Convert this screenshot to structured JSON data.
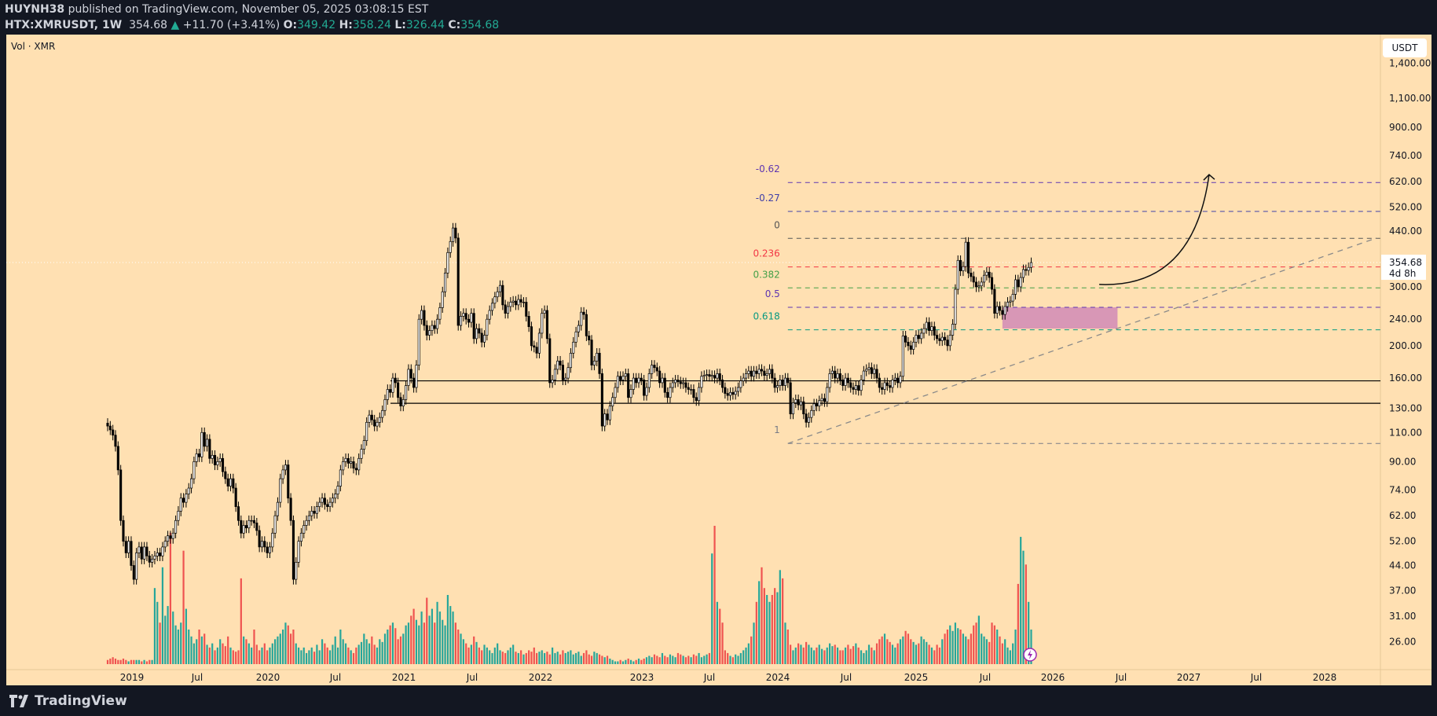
{
  "header": {
    "author": "HUYNH38",
    "published_text": "published on TradingView.com, November 05, 2025 03:08:15 EST",
    "symbol": "HTX:XMRUSDT, 1W",
    "last": "354.68",
    "change": "+11.70 (+3.41%)",
    "o_label": "O:",
    "o": "349.42",
    "h_label": "H:",
    "h": "358.24",
    "l_label": "L:",
    "l": "326.44",
    "c_label": "C:",
    "c": "354.68",
    "direction_icon": "triangle-up-icon"
  },
  "indicator_label": "Vol · XMR",
  "currency_button": "USDT",
  "footer": {
    "logo_text": "TradingView"
  },
  "colors": {
    "background": "#ffe0b2",
    "up_volume": "#26a69a",
    "down_volume": "#ef5350",
    "zone": "#d48fb6"
  },
  "chart_data": {
    "type": "candlestick",
    "timeframe": "1W",
    "y_scale": "log",
    "grid": false,
    "closes": [
      115,
      112,
      108,
      100,
      85,
      60,
      52,
      48,
      52,
      44,
      40,
      48,
      50,
      46,
      50,
      47,
      45,
      46,
      47,
      48,
      47,
      50,
      52,
      54,
      53,
      55,
      60,
      64,
      70,
      68,
      72,
      75,
      80,
      90,
      95,
      93,
      110,
      100,
      105,
      92,
      94,
      88,
      90,
      92,
      84,
      80,
      76,
      80,
      75,
      66,
      60,
      55,
      58,
      57,
      60,
      60,
      59,
      56,
      50,
      52,
      50,
      48,
      50,
      55,
      62,
      68,
      80,
      85,
      88,
      70,
      60,
      40,
      45,
      52,
      55,
      58,
      60,
      62,
      64,
      63,
      66,
      68,
      70,
      67,
      66,
      68,
      70,
      72,
      76,
      85,
      90,
      92,
      89,
      90,
      86,
      85,
      92,
      98,
      104,
      118,
      124,
      120,
      115,
      118,
      122,
      128,
      138,
      148,
      145,
      160,
      155,
      140,
      132,
      138,
      152,
      170,
      160,
      150,
      175,
      240,
      255,
      230,
      215,
      222,
      230,
      225,
      240,
      260,
      290,
      330,
      380,
      410,
      450,
      420,
      230,
      245,
      250,
      240,
      235,
      250,
      210,
      225,
      218,
      205,
      215,
      240,
      255,
      268,
      280,
      290,
      303,
      265,
      250,
      262,
      270,
      272,
      265,
      275,
      270,
      270,
      245,
      228,
      200,
      198,
      190,
      218,
      250,
      255,
      210,
      155,
      158,
      170,
      180,
      175,
      158,
      160,
      172,
      190,
      205,
      220,
      230,
      252,
      248,
      214,
      208,
      175,
      180,
      190,
      165,
      115,
      125,
      120,
      132,
      140,
      150,
      162,
      158,
      162,
      165,
      140,
      148,
      160,
      155,
      160,
      158,
      142,
      150,
      165,
      175,
      172,
      168,
      155,
      160,
      145,
      140,
      150,
      155,
      158,
      156,
      154,
      155,
      150,
      148,
      148,
      140,
      137,
      150,
      162,
      163,
      164,
      162,
      163,
      160,
      165,
      158,
      150,
      144,
      142,
      145,
      143,
      146,
      150,
      157,
      160,
      165,
      168,
      162,
      168,
      165,
      170,
      168,
      163,
      165,
      170,
      160,
      150,
      152,
      158,
      152,
      160,
      155,
      125,
      135,
      138,
      133,
      136,
      125,
      118,
      122,
      128,
      134,
      132,
      137,
      139,
      136,
      150,
      165,
      168,
      160,
      165,
      158,
      152,
      160,
      155,
      150,
      148,
      152,
      147,
      158,
      168,
      170,
      172,
      165,
      170,
      160,
      150,
      148,
      155,
      152,
      150,
      158,
      160,
      155,
      162,
      214,
      205,
      200,
      195,
      205,
      215,
      210,
      218,
      225,
      235,
      222,
      228,
      215,
      210,
      207,
      212,
      208,
      200,
      215,
      232,
      295,
      360,
      335,
      345,
      408,
      330,
      322,
      310,
      300,
      302,
      310,
      325,
      332,
      320,
      295,
      250,
      262,
      255,
      248,
      262,
      270,
      272,
      285,
      315,
      300,
      320,
      338,
      336,
      343,
      354.68
    ],
    "volume_relative": [
      3,
      4,
      5,
      4,
      3,
      3,
      4,
      3,
      2,
      3,
      3,
      3,
      3,
      2,
      3,
      2,
      3,
      3,
      55,
      45,
      30,
      70,
      35,
      42,
      95,
      38,
      28,
      25,
      30,
      82,
      40,
      25,
      20,
      15,
      18,
      25,
      20,
      22,
      14,
      12,
      15,
      10,
      12,
      18,
      15,
      13,
      20,
      12,
      10,
      9,
      10,
      62,
      20,
      18,
      15,
      12,
      25,
      14,
      10,
      12,
      15,
      10,
      12,
      15,
      18,
      20,
      22,
      25,
      30,
      28,
      22,
      25,
      15,
      12,
      10,
      12,
      8,
      10,
      12,
      9,
      14,
      10,
      18,
      15,
      12,
      10,
      14,
      20,
      12,
      25,
      18,
      15,
      12,
      10,
      8,
      12,
      14,
      16,
      22,
      18,
      15,
      20,
      14,
      12,
      18,
      16,
      22,
      25,
      28,
      30,
      26,
      18,
      20,
      22,
      28,
      30,
      35,
      40,
      32,
      28,
      38,
      30,
      48,
      35,
      40,
      30,
      45,
      38,
      32,
      28,
      50,
      42,
      38,
      30,
      25,
      22,
      18,
      15,
      12,
      14,
      20,
      16,
      12,
      10,
      14,
      12,
      10,
      8,
      12,
      15,
      10,
      9,
      8,
      10,
      12,
      14,
      9,
      8,
      10,
      7,
      8,
      10,
      9,
      12,
      8,
      9,
      10,
      8,
      9,
      7,
      12,
      8,
      9,
      7,
      10,
      8,
      9,
      10,
      7,
      8,
      9,
      6,
      8,
      10,
      7,
      6,
      9,
      8,
      7,
      6,
      5,
      6,
      4,
      3,
      2,
      2,
      3,
      2,
      3,
      4,
      3,
      2,
      3,
      4,
      3,
      4,
      5,
      6,
      5,
      7,
      6,
      5,
      8,
      6,
      5,
      7,
      6,
      5,
      8,
      7,
      6,
      5,
      6,
      5,
      7,
      6,
      8,
      5,
      6,
      7,
      8,
      80,
      100,
      45,
      40,
      30,
      10,
      8,
      6,
      5,
      7,
      6,
      8,
      10,
      12,
      15,
      20,
      30,
      45,
      60,
      70,
      55,
      50,
      45,
      50,
      55,
      52,
      68,
      62,
      30,
      25,
      14,
      10,
      12,
      15,
      14,
      12,
      16,
      14,
      12,
      10,
      12,
      14,
      11,
      10,
      12,
      15,
      13,
      14,
      12,
      10,
      10,
      12,
      14,
      11,
      13,
      15,
      12,
      10,
      8,
      10,
      14,
      12,
      10,
      15,
      18,
      20,
      22,
      18,
      16,
      14,
      12,
      15,
      18,
      20,
      24,
      22,
      18,
      16,
      14,
      15,
      20,
      18,
      16,
      14,
      12,
      10,
      14,
      12,
      18,
      22,
      25,
      28,
      24,
      30,
      26,
      25,
      22,
      20,
      18,
      22,
      28,
      30,
      35,
      22,
      20,
      18,
      16,
      30,
      28,
      25,
      20,
      15,
      18,
      12,
      10,
      15,
      25,
      58,
      92,
      82,
      72,
      45,
      25
    ],
    "price_ticks": [
      {
        "value": 1400,
        "label": "1,400.00"
      },
      {
        "value": 1100,
        "label": "1,100.00"
      },
      {
        "value": 900,
        "label": "900.00"
      },
      {
        "value": 740,
        "label": "740.00"
      },
      {
        "value": 620,
        "label": "620.00"
      },
      {
        "value": 520,
        "label": "520.00"
      },
      {
        "value": 440,
        "label": "440.00"
      },
      {
        "value": 300,
        "label": "300.00"
      },
      {
        "value": 240,
        "label": "240.00"
      },
      {
        "value": 200,
        "label": "200.00"
      },
      {
        "value": 160,
        "label": "160.00"
      },
      {
        "value": 130,
        "label": "130.00"
      },
      {
        "value": 110,
        "label": "110.00"
      },
      {
        "value": 90,
        "label": "90.00"
      },
      {
        "value": 74,
        "label": "74.00"
      },
      {
        "value": 62,
        "label": "62.00"
      },
      {
        "value": 52,
        "label": "52.00"
      },
      {
        "value": 44,
        "label": "44.00"
      },
      {
        "value": 37,
        "label": "37.00"
      },
      {
        "value": 31,
        "label": "31.00"
      },
      {
        "value": 26,
        "label": "26.00"
      }
    ],
    "time_ticks": [
      "2019",
      "Jul",
      "2020",
      "Jul",
      "2021",
      "Jul",
      "2022",
      "2023",
      "Jul",
      "2024",
      "Jul",
      "2025",
      "Jul",
      "2026",
      "Jul",
      "2027",
      "Jul",
      "2028"
    ],
    "last_price": {
      "value": 354.68,
      "label": "354.68",
      "countdown": "4d 8h"
    },
    "fibonacci": {
      "price_at_0": 419,
      "price_at_1": 102,
      "start_date": "2024-01-22",
      "levels": [
        {
          "level": -0.62,
          "label": "-0.62",
          "color": "#5e35b1"
        },
        {
          "level": -0.27,
          "label": "-0.27",
          "color": "#3f3fa8"
        },
        {
          "level": 0,
          "label": "0",
          "color": "#555555"
        },
        {
          "level": 0.236,
          "label": "0.236",
          "color": "#f23645"
        },
        {
          "level": 0.382,
          "label": "0.382",
          "color": "#43a047"
        },
        {
          "level": 0.5,
          "label": "0.5",
          "color": "#5e35b1"
        },
        {
          "level": 0.618,
          "label": "0.618",
          "color": "#089981"
        },
        {
          "level": 1,
          "label": "1",
          "color": "#787b86"
        }
      ]
    },
    "horizontal_lines": [
      157,
      134.5
    ],
    "trendline": {
      "from": {
        "date": "2024-01-22",
        "price": 102
      },
      "to": {
        "date": "2028-05-15",
        "price": 420
      }
    },
    "zone": {
      "from_date": "2025-08-18",
      "to_date": "2026-06-22",
      "price_high": 260.5,
      "price_low": 225
    },
    "arrow": {
      "from": {
        "date": "2026-05-04",
        "price": 305
      },
      "to": {
        "date": "2027-02-22",
        "price": 650
      }
    }
  }
}
